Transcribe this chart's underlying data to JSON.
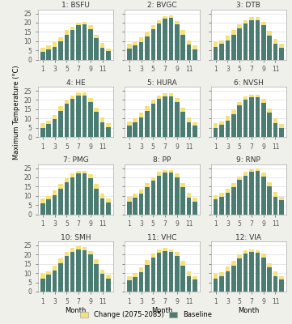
{
  "stations": [
    "1: BSFU",
    "2: BVGC",
    "3: DTB",
    "4: HE",
    "5: HURA",
    "6: NVSH",
    "7: PMG",
    "8: PP",
    "9: RNP",
    "10: SMH",
    "11: VHC",
    "12: VIA"
  ],
  "months": [
    1,
    2,
    3,
    4,
    5,
    6,
    7,
    8,
    9,
    10,
    11,
    12
  ],
  "month_labels": [
    "1",
    "3",
    "5",
    "7",
    "9",
    "11"
  ],
  "baseline": {
    "BSFU": [
      4.0,
      5.5,
      7.0,
      10.0,
      13.5,
      16.0,
      18.5,
      19.0,
      16.5,
      11.5,
      6.5,
      4.5
    ],
    "BVGC": [
      6.0,
      7.5,
      9.5,
      12.5,
      16.5,
      19.5,
      22.0,
      22.5,
      19.0,
      13.5,
      8.0,
      5.5
    ],
    "DTB": [
      7.0,
      8.5,
      10.5,
      13.5,
      17.0,
      19.5,
      21.5,
      21.5,
      18.5,
      13.0,
      8.5,
      6.5
    ],
    "HE": [
      5.0,
      7.0,
      9.5,
      14.0,
      18.0,
      20.5,
      22.5,
      22.5,
      19.0,
      13.5,
      8.0,
      5.5
    ],
    "HURA": [
      6.0,
      8.0,
      10.5,
      14.0,
      18.0,
      20.5,
      22.0,
      22.0,
      19.0,
      13.5,
      8.0,
      6.0
    ],
    "NVSH": [
      5.0,
      6.5,
      9.0,
      12.5,
      17.0,
      20.0,
      21.5,
      21.5,
      18.5,
      13.0,
      7.5,
      5.0
    ],
    "PMG": [
      6.0,
      8.0,
      10.5,
      14.0,
      17.5,
      20.0,
      22.0,
      22.0,
      19.5,
      14.0,
      8.5,
      6.5
    ],
    "PP": [
      7.0,
      9.0,
      11.0,
      14.5,
      18.0,
      21.0,
      22.5,
      22.5,
      20.0,
      14.5,
      9.0,
      7.0
    ],
    "RNP": [
      8.0,
      9.5,
      11.5,
      14.5,
      18.5,
      21.0,
      23.0,
      23.5,
      20.5,
      15.0,
      9.5,
      7.5
    ],
    "SMH": [
      7.0,
      9.0,
      11.5,
      15.5,
      19.5,
      21.5,
      23.0,
      22.5,
      20.0,
      15.0,
      9.5,
      7.0
    ],
    "VHC": [
      6.0,
      8.0,
      10.5,
      14.5,
      18.5,
      21.0,
      22.0,
      21.5,
      19.5,
      14.0,
      8.5,
      6.5
    ],
    "VIA": [
      7.0,
      8.5,
      11.0,
      14.0,
      18.0,
      20.5,
      21.5,
      21.0,
      18.5,
      13.0,
      8.5,
      6.5
    ]
  },
  "change": {
    "BSFU": [
      2.5,
      2.0,
      2.5,
      2.0,
      2.5,
      2.0,
      1.5,
      1.5,
      2.0,
      2.0,
      2.5,
      1.5
    ],
    "BVGC": [
      2.5,
      2.0,
      2.5,
      2.5,
      2.0,
      2.0,
      1.5,
      1.5,
      2.0,
      2.5,
      2.5,
      2.0
    ],
    "DTB": [
      2.5,
      2.0,
      2.5,
      2.5,
      2.0,
      2.0,
      1.5,
      1.5,
      2.0,
      2.5,
      2.5,
      2.0
    ],
    "HE": [
      2.5,
      2.0,
      2.5,
      2.5,
      2.0,
      2.0,
      1.5,
      1.5,
      2.0,
      2.5,
      2.5,
      2.0
    ],
    "HURA": [
      2.5,
      2.0,
      2.5,
      2.5,
      2.0,
      2.0,
      1.5,
      1.5,
      2.0,
      2.5,
      2.5,
      2.0
    ],
    "NVSH": [
      2.5,
      2.0,
      2.5,
      2.5,
      2.0,
      2.0,
      1.5,
      1.5,
      2.0,
      2.5,
      2.5,
      2.0
    ],
    "PMG": [
      2.5,
      2.0,
      2.5,
      2.5,
      2.0,
      2.0,
      1.5,
      1.5,
      2.0,
      2.5,
      2.5,
      2.0
    ],
    "PP": [
      2.5,
      2.0,
      2.5,
      2.5,
      2.0,
      2.0,
      1.5,
      1.5,
      2.0,
      2.5,
      2.5,
      2.0
    ],
    "RNP": [
      2.5,
      2.0,
      2.5,
      2.5,
      2.0,
      2.0,
      1.5,
      1.5,
      2.0,
      2.5,
      2.5,
      2.0
    ],
    "SMH": [
      2.5,
      2.0,
      2.5,
      2.5,
      2.0,
      2.0,
      1.5,
      1.5,
      2.0,
      2.5,
      2.5,
      2.0
    ],
    "VHC": [
      2.5,
      2.0,
      2.5,
      2.5,
      2.0,
      2.0,
      1.5,
      1.5,
      2.0,
      2.5,
      2.5,
      2.0
    ],
    "VIA": [
      2.5,
      2.0,
      2.5,
      2.5,
      2.0,
      2.0,
      1.5,
      1.5,
      2.0,
      2.5,
      2.5,
      2.0
    ]
  },
  "baseline_color": "#4a7c72",
  "change_color": "#f5e17a",
  "ylim": [
    0,
    27
  ],
  "yticks": [
    0,
    5,
    10,
    15,
    20,
    25
  ],
  "background_color": "#f0f0eb",
  "panel_bg": "#ffffff",
  "grid_color": "#dddddd",
  "title_fontsize": 6.5,
  "axis_fontsize": 6.0,
  "legend_fontsize": 6.0,
  "ylabel": "Maximum Temperature (°C)",
  "xlabel": "Month"
}
